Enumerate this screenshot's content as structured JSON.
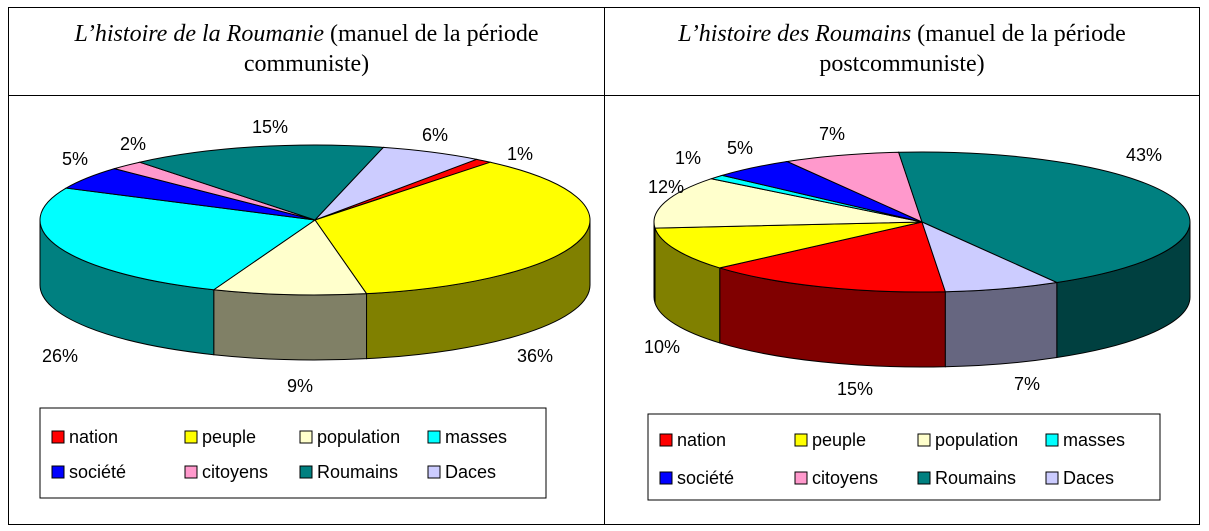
{
  "chart_data": [
    {
      "type": "pie3d",
      "title": {
        "work": "L’histoire de la Roumanie",
        "note": "(manuel de la période communiste)"
      },
      "categories": [
        "nation",
        "peuple",
        "population",
        "masses",
        "société",
        "citoyens",
        "Roumains",
        "Daces"
      ],
      "values": [
        1,
        36,
        9,
        26,
        5,
        2,
        15,
        6
      ],
      "value_labels": [
        "1%",
        "36%",
        "9%",
        "26%",
        "5%",
        "2%",
        "15%",
        "6%"
      ],
      "colors": [
        "#ff0000",
        "#ffff00",
        "#ffffcc",
        "#00ffff",
        "#0000ff",
        "#ff99cc",
        "#008080",
        "#ccccff"
      ]
    },
    {
      "type": "pie3d",
      "title": {
        "work": "L’histoire des Roumains",
        "note": "(manuel de la période postcommuniste)"
      },
      "categories": [
        "nation",
        "peuple",
        "population",
        "masses",
        "société",
        "citoyens",
        "Roumains",
        "Daces"
      ],
      "values": [
        15,
        10,
        12,
        1,
        5,
        7,
        43,
        7
      ],
      "value_labels": [
        "15%",
        "10%",
        "12%",
        "1%",
        "5%",
        "7%",
        "43%",
        "7%"
      ],
      "colors": [
        "#ff0000",
        "#ffff00",
        "#ffffcc",
        "#00ffff",
        "#0000ff",
        "#ff99cc",
        "#008080",
        "#ccccff"
      ]
    }
  ]
}
